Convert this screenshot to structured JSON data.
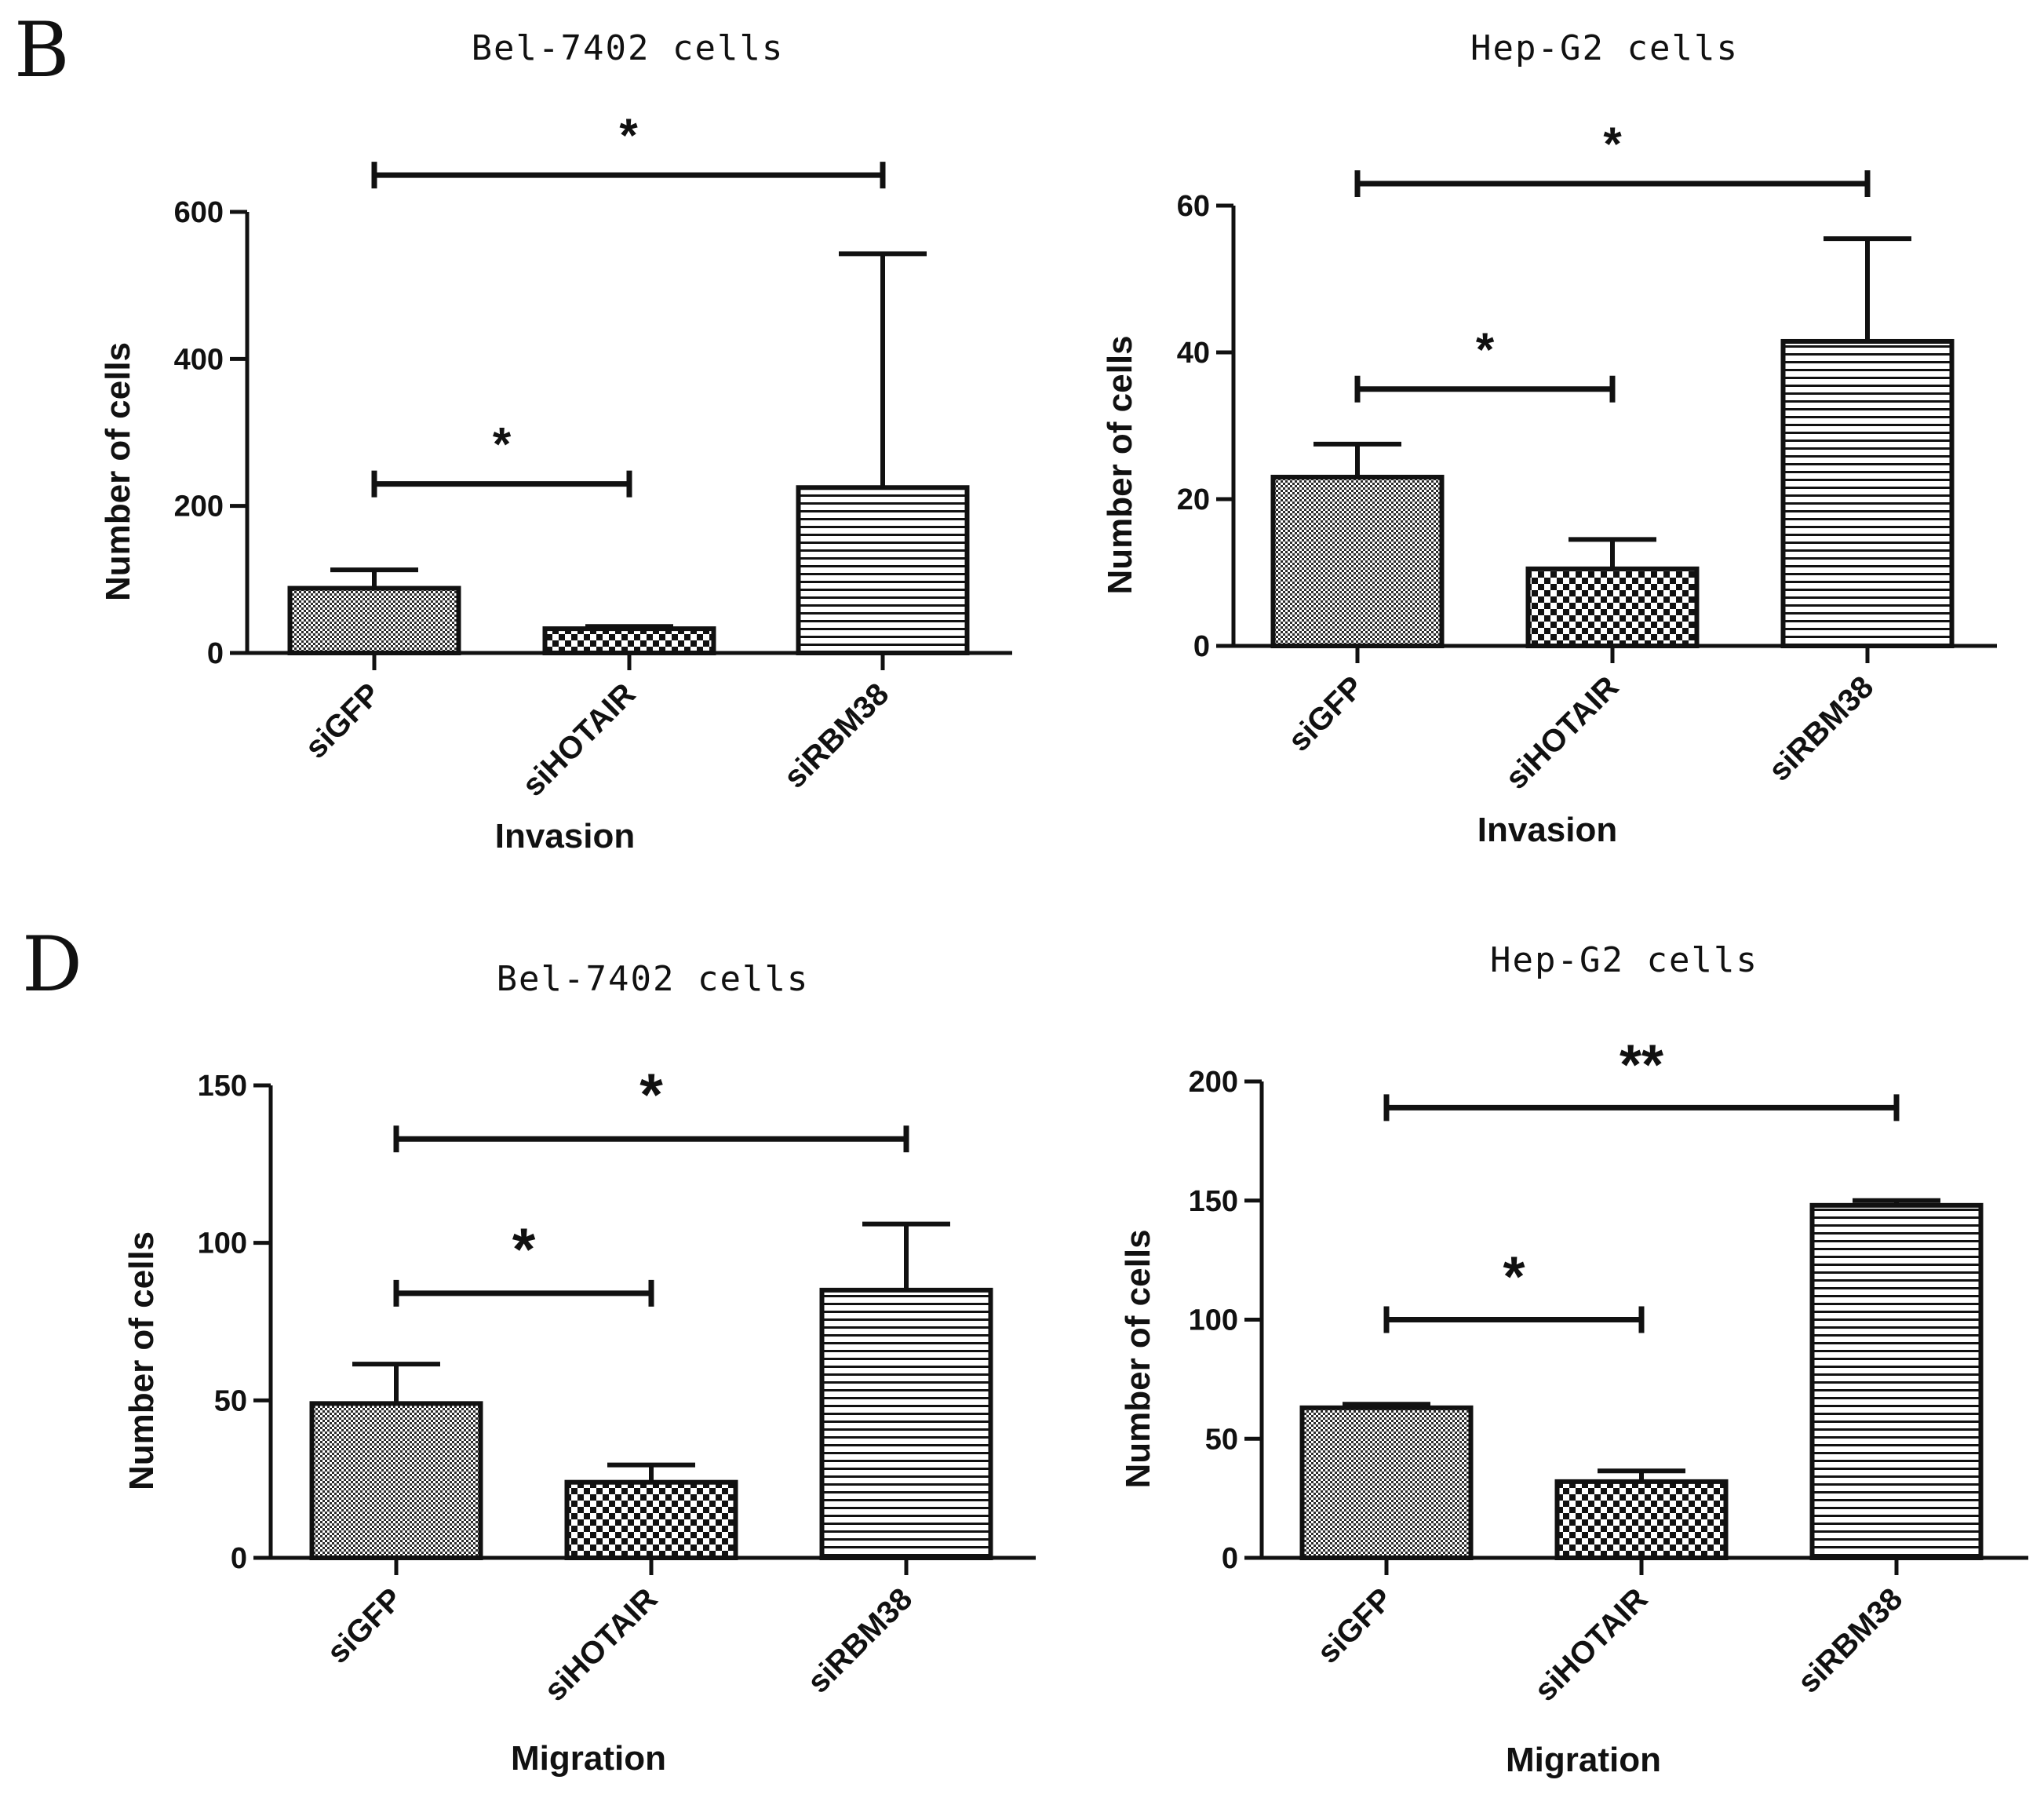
{
  "panels": {
    "B": "B",
    "D": "D"
  },
  "chart_data": [
    {
      "type": "bar",
      "panel": "B",
      "title": "Bel-7402 cells",
      "xlabel": "Invasion",
      "ylabel": "Number of cells",
      "categories": [
        "siGFP",
        "siHOTAIR",
        "siRBM38"
      ],
      "values": [
        88,
        33,
        225
      ],
      "errors": [
        25,
        3,
        318
      ],
      "patterns": [
        "dots",
        "checker",
        "hlines"
      ],
      "ylim": [
        0,
        600
      ],
      "yticks": [
        0,
        200,
        400,
        600
      ],
      "significance": [
        {
          "from": 0,
          "to": 2,
          "level": 650,
          "label": "*"
        },
        {
          "from": 0,
          "to": 1,
          "level": 230,
          "label": "*"
        }
      ]
    },
    {
      "type": "bar",
      "panel": "B",
      "title": "Hep-G2 cells",
      "xlabel": "Invasion",
      "ylabel": "Number of cells",
      "categories": [
        "siGFP",
        "siHOTAIR",
        "siRBM38"
      ],
      "values": [
        23,
        10.5,
        41.5
      ],
      "errors": [
        4.5,
        4,
        14
      ],
      "patterns": [
        "dots",
        "checker",
        "hlines"
      ],
      "ylim": [
        0,
        60
      ],
      "yticks": [
        0,
        20,
        40,
        60
      ],
      "significance": [
        {
          "from": 0,
          "to": 2,
          "level": 63,
          "label": "*"
        },
        {
          "from": 0,
          "to": 1,
          "level": 35,
          "label": "*"
        }
      ]
    },
    {
      "type": "bar",
      "panel": "D",
      "title": "Bel-7402 cells",
      "xlabel": "Migration",
      "ylabel": "Number of cells",
      "categories": [
        "siGFP",
        "siHOTAIR",
        "siRBM38"
      ],
      "values": [
        49,
        24,
        85
      ],
      "errors": [
        12.5,
        5.5,
        21
      ],
      "patterns": [
        "dots",
        "checker",
        "hlines"
      ],
      "ylim": [
        0,
        150
      ],
      "yticks": [
        0,
        50,
        100,
        150
      ],
      "significance": [
        {
          "from": 0,
          "to": 2,
          "level": 133,
          "label": "*"
        },
        {
          "from": 0,
          "to": 1,
          "level": 84,
          "label": "*"
        }
      ]
    },
    {
      "type": "bar",
      "panel": "D",
      "title": "Hep-G2 cells",
      "xlabel": "Migration",
      "ylabel": "Number of cells",
      "categories": [
        "siGFP",
        "siHOTAIR",
        "siRBM38"
      ],
      "values": [
        63,
        32,
        148
      ],
      "errors": [
        1.5,
        4.5,
        2
      ],
      "patterns": [
        "dots",
        "checker",
        "hlines"
      ],
      "ylim": [
        0,
        200
      ],
      "yticks": [
        0,
        50,
        100,
        150,
        200
      ],
      "significance": [
        {
          "from": 0,
          "to": 2,
          "level": 189,
          "label": "**"
        },
        {
          "from": 0,
          "to": 1,
          "level": 100,
          "label": "*"
        }
      ]
    }
  ]
}
